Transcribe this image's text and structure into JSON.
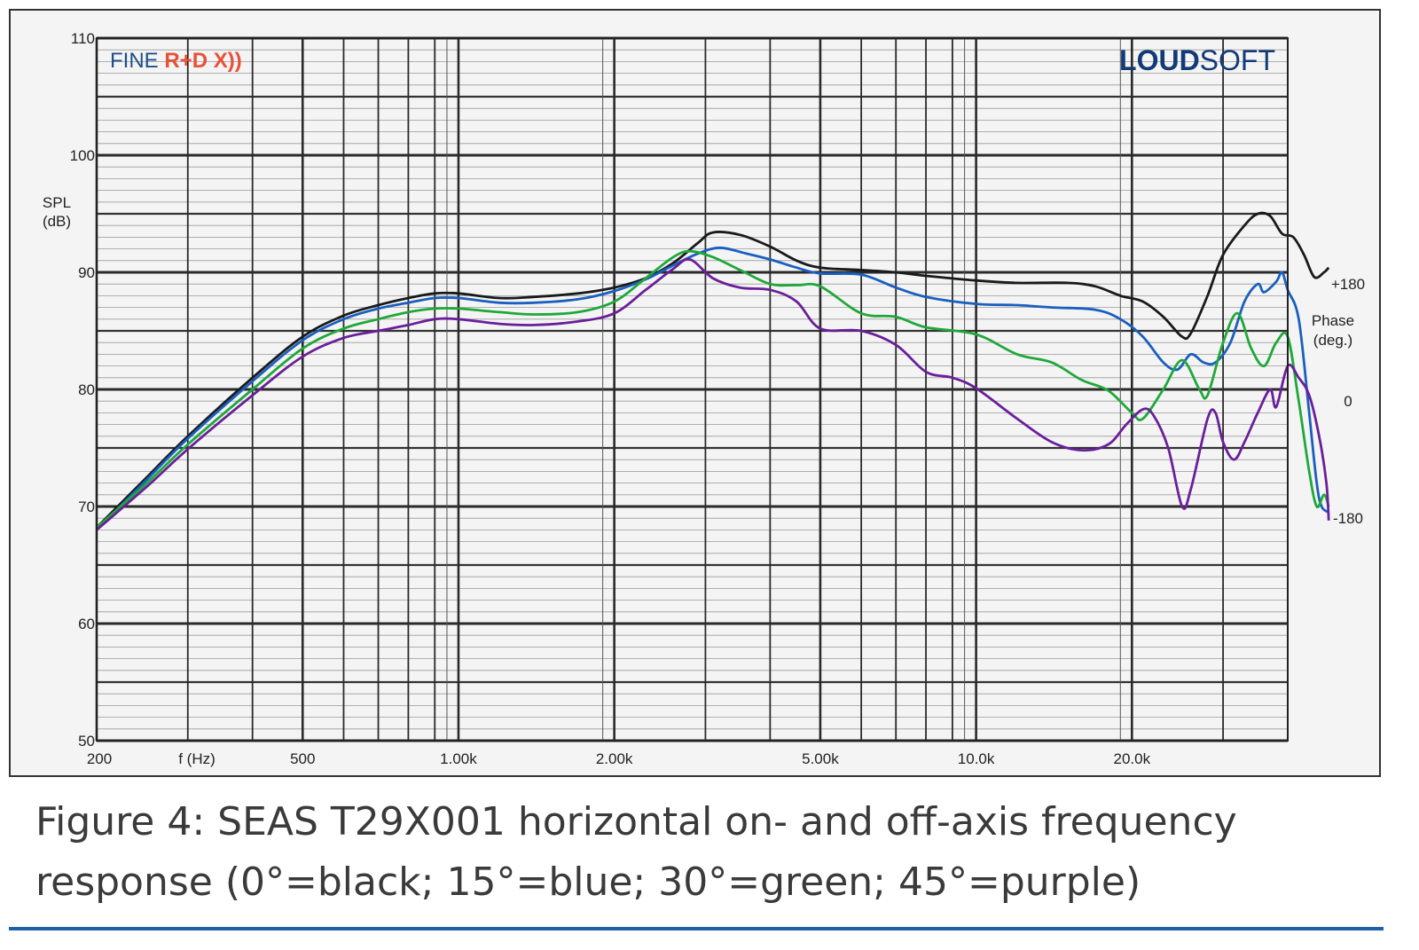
{
  "brand": {
    "left_prefix": "FINE ",
    "left_accent": "R+D X))",
    "right_bold": "LOUD",
    "right_light": "SOFT",
    "colors": {
      "fine": "#1f4e8c",
      "accent": "#e8503a",
      "loudsoft": "#123a78"
    }
  },
  "caption": {
    "line1": "Figure 4: SEAS T29X001 horizontal on- and off-axis frequency",
    "line2": "response (0°=black; 15°=blue; 30°=green; 45°=purple)"
  },
  "chart_data": {
    "type": "line",
    "x_scale": "log",
    "xlim": [
      200,
      40000
    ],
    "ylim": [
      50,
      110
    ],
    "grid": true,
    "ylabel": "SPL\n(dB)",
    "xlabel": "f (Hz)",
    "right_axis": {
      "label": "Phase\n(deg.)",
      "ticks": [
        {
          "label": "+180",
          "y": 89
        },
        {
          "label": "0",
          "y": 79
        },
        {
          "label": "-180",
          "y": 69
        }
      ]
    },
    "y_ticks": [
      50,
      60,
      70,
      80,
      90,
      100,
      110
    ],
    "x_tick_labels": [
      {
        "x": 200,
        "label": "200"
      },
      {
        "x": 500,
        "label": "500"
      },
      {
        "x": 1000,
        "label": "1.00k"
      },
      {
        "x": 2000,
        "label": "2.00k"
      },
      {
        "x": 5000,
        "label": "5.00k"
      },
      {
        "x": 10000,
        "label": "10.0k"
      },
      {
        "x": 20000,
        "label": "20.0k"
      }
    ],
    "series": [
      {
        "color": "#1a1a1a",
        "points": [
          [
            200,
            68.2
          ],
          [
            250,
            72.5
          ],
          [
            300,
            76
          ],
          [
            400,
            81
          ],
          [
            500,
            84.5
          ],
          [
            600,
            86.3
          ],
          [
            700,
            87.2
          ],
          [
            800,
            87.8
          ],
          [
            900,
            88.2
          ],
          [
            1000,
            88.2
          ],
          [
            1200,
            87.8
          ],
          [
            1400,
            87.9
          ],
          [
            1700,
            88.2
          ],
          [
            2000,
            88.7
          ],
          [
            2300,
            89.5
          ],
          [
            2600,
            90.8
          ],
          [
            2900,
            92.5
          ],
          [
            3100,
            93.4
          ],
          [
            3500,
            93.2
          ],
          [
            4000,
            92.2
          ],
          [
            4500,
            91
          ],
          [
            5000,
            90.4
          ],
          [
            6000,
            90.2
          ],
          [
            7000,
            90
          ],
          [
            8000,
            89.7
          ],
          [
            10000,
            89.3
          ],
          [
            12000,
            89.1
          ],
          [
            15000,
            89.1
          ],
          [
            17000,
            88.8
          ],
          [
            19000,
            88
          ],
          [
            21000,
            87.5
          ],
          [
            23000,
            86.2
          ],
          [
            25000,
            84.5
          ],
          [
            26000,
            84.8
          ],
          [
            28000,
            88
          ],
          [
            30000,
            91.5
          ],
          [
            33000,
            94
          ],
          [
            35000,
            95
          ],
          [
            37000,
            94.8
          ],
          [
            39000,
            93.3
          ],
          [
            41000,
            93
          ],
          [
            43000,
            91.5
          ],
          [
            45000,
            89.6
          ],
          [
            47000,
            90
          ],
          [
            48000,
            90.4
          ]
        ]
      },
      {
        "color": "#1a5fbf",
        "points": [
          [
            200,
            68
          ],
          [
            250,
            72.3
          ],
          [
            300,
            75.8
          ],
          [
            400,
            80.7
          ],
          [
            500,
            84.2
          ],
          [
            600,
            86
          ],
          [
            700,
            86.9
          ],
          [
            800,
            87.4
          ],
          [
            900,
            87.8
          ],
          [
            1000,
            87.8
          ],
          [
            1200,
            87.4
          ],
          [
            1400,
            87.4
          ],
          [
            1700,
            87.7
          ],
          [
            2000,
            88.4
          ],
          [
            2300,
            89.4
          ],
          [
            2600,
            90.6
          ],
          [
            2900,
            91.6
          ],
          [
            3200,
            92.1
          ],
          [
            3600,
            91.6
          ],
          [
            4000,
            91.1
          ],
          [
            4500,
            90.4
          ],
          [
            5000,
            89.9
          ],
          [
            6000,
            89.8
          ],
          [
            7000,
            88.7
          ],
          [
            8000,
            87.9
          ],
          [
            10000,
            87.3
          ],
          [
            12000,
            87.2
          ],
          [
            14000,
            87
          ],
          [
            17000,
            86.8
          ],
          [
            19000,
            86
          ],
          [
            21000,
            84.5
          ],
          [
            23000,
            82.3
          ],
          [
            24500,
            81.7
          ],
          [
            26000,
            83
          ],
          [
            27500,
            82.3
          ],
          [
            29000,
            82.3
          ],
          [
            31000,
            84
          ],
          [
            33000,
            87.5
          ],
          [
            35000,
            89
          ],
          [
            36000,
            88.3
          ],
          [
            38000,
            89.2
          ],
          [
            39000,
            90
          ],
          [
            40000,
            88.5
          ],
          [
            42000,
            86
          ],
          [
            44000,
            78
          ],
          [
            45500,
            72
          ],
          [
            46500,
            70
          ],
          [
            48000,
            69.5
          ]
        ]
      },
      {
        "color": "#1fa83a",
        "points": [
          [
            200,
            68.2
          ],
          [
            250,
            72
          ],
          [
            300,
            75.3
          ],
          [
            400,
            80
          ],
          [
            500,
            83.5
          ],
          [
            600,
            85.2
          ],
          [
            700,
            86
          ],
          [
            800,
            86.6
          ],
          [
            900,
            86.9
          ],
          [
            1000,
            86.9
          ],
          [
            1200,
            86.6
          ],
          [
            1400,
            86.4
          ],
          [
            1700,
            86.6
          ],
          [
            2000,
            87.5
          ],
          [
            2300,
            89.5
          ],
          [
            2600,
            91.3
          ],
          [
            2800,
            91.8
          ],
          [
            3100,
            91.3
          ],
          [
            3500,
            90.2
          ],
          [
            4000,
            89
          ],
          [
            4500,
            88.9
          ],
          [
            5000,
            88.8
          ],
          [
            6000,
            86.5
          ],
          [
            7000,
            86.2
          ],
          [
            8000,
            85.3
          ],
          [
            10000,
            84.7
          ],
          [
            12000,
            83
          ],
          [
            14000,
            82.3
          ],
          [
            16000,
            80.8
          ],
          [
            18000,
            79.9
          ],
          [
            20000,
            78
          ],
          [
            21000,
            77.5
          ],
          [
            23000,
            80
          ],
          [
            25000,
            82.5
          ],
          [
            27000,
            80
          ],
          [
            28000,
            79.5
          ],
          [
            30000,
            84
          ],
          [
            32000,
            86.5
          ],
          [
            34000,
            83.5
          ],
          [
            36000,
            82
          ],
          [
            38000,
            84
          ],
          [
            40000,
            84.5
          ],
          [
            42000,
            79
          ],
          [
            44000,
            73
          ],
          [
            45500,
            70
          ],
          [
            47000,
            71
          ],
          [
            48000,
            70
          ]
        ]
      },
      {
        "color": "#6a1f9a",
        "points": [
          [
            200,
            68
          ],
          [
            250,
            71.7
          ],
          [
            300,
            74.9
          ],
          [
            400,
            79.5
          ],
          [
            500,
            82.8
          ],
          [
            600,
            84.4
          ],
          [
            700,
            85
          ],
          [
            800,
            85.5
          ],
          [
            900,
            86
          ],
          [
            1000,
            86
          ],
          [
            1200,
            85.6
          ],
          [
            1400,
            85.5
          ],
          [
            1700,
            85.8
          ],
          [
            2000,
            86.5
          ],
          [
            2300,
            88.5
          ],
          [
            2600,
            90.3
          ],
          [
            2800,
            91.1
          ],
          [
            3100,
            89.5
          ],
          [
            3500,
            88.7
          ],
          [
            4000,
            88.5
          ],
          [
            4500,
            87.5
          ],
          [
            5000,
            85.2
          ],
          [
            6000,
            85
          ],
          [
            7000,
            83.8
          ],
          [
            8000,
            81.5
          ],
          [
            9000,
            81
          ],
          [
            10000,
            80.1
          ],
          [
            12000,
            77.5
          ],
          [
            14000,
            75.5
          ],
          [
            16000,
            74.8
          ],
          [
            18000,
            75.3
          ],
          [
            19500,
            77
          ],
          [
            21000,
            78.3
          ],
          [
            22000,
            77.8
          ],
          [
            23500,
            75
          ],
          [
            25000,
            70
          ],
          [
            26000,
            71.5
          ],
          [
            28000,
            77.5
          ],
          [
            29000,
            78
          ],
          [
            30000,
            75.5
          ],
          [
            31500,
            74
          ],
          [
            33000,
            75.5
          ],
          [
            35000,
            78
          ],
          [
            37000,
            80
          ],
          [
            38000,
            78.5
          ],
          [
            40000,
            82
          ],
          [
            42000,
            81
          ],
          [
            44000,
            79.5
          ],
          [
            46000,
            76
          ],
          [
            47500,
            72
          ],
          [
            48000,
            68.8
          ]
        ]
      }
    ]
  }
}
